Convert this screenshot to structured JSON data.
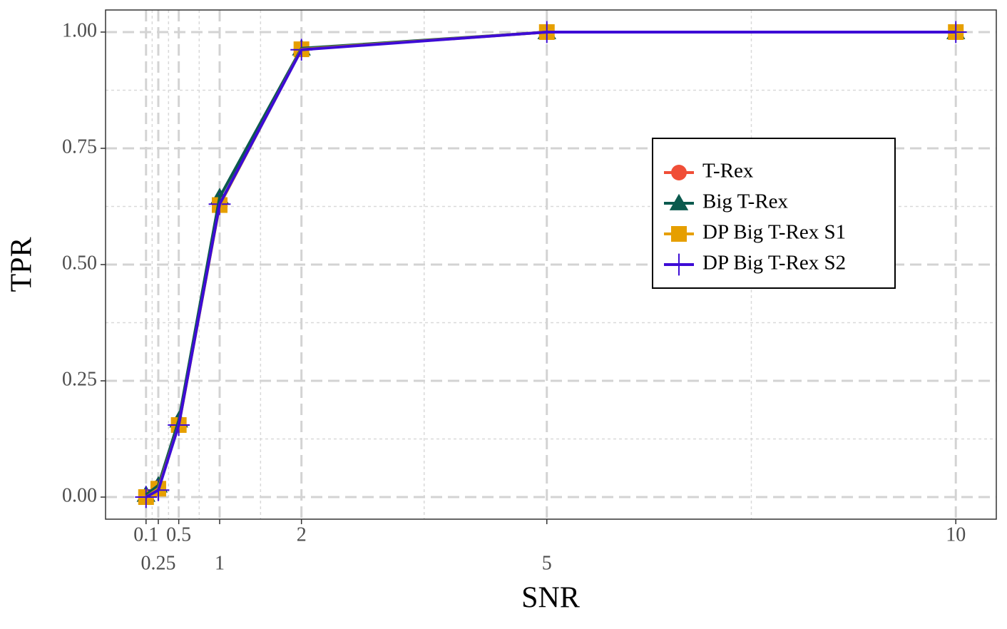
{
  "chart_data": {
    "type": "line",
    "x_label": "SNR",
    "y_label": "TPR",
    "x": [
      0.1,
      0.25,
      0.5,
      1,
      2,
      5,
      10
    ],
    "series": [
      {
        "name": "T-Rex",
        "color": "#f04e37",
        "marker": "circle",
        "values": [
          0,
          0.02,
          0.155,
          0.63,
          0.963,
          1,
          1
        ]
      },
      {
        "name": "Big T-Rex",
        "color": "#0b5a4e",
        "marker": "triangle",
        "values": [
          0.005,
          0.025,
          0.165,
          0.645,
          0.965,
          1,
          1
        ]
      },
      {
        "name": "DP Big T-Rex S1",
        "color": "#e69f00",
        "marker": "square",
        "values": [
          0,
          0.018,
          0.155,
          0.628,
          0.963,
          1,
          1
        ]
      },
      {
        "name": "DP Big T-Rex S2",
        "color": "#3d0cd6",
        "marker": "plus",
        "values": [
          0,
          0.015,
          0.155,
          0.63,
          0.962,
          1,
          1
        ]
      }
    ],
    "xlim": [
      -0.395,
      10.495
    ],
    "ylim": [
      -0.0475,
      1.0475
    ],
    "xticks": [
      0.1,
      0.25,
      0.5,
      1,
      2,
      5,
      10
    ],
    "yticks": [
      {
        "value": 0,
        "label": "0.00"
      },
      {
        "value": 0.25,
        "label": "0.25"
      },
      {
        "value": 0.5,
        "label": "0.50"
      },
      {
        "value": 0.75,
        "label": "0.75"
      },
      {
        "value": 1,
        "label": "1.00"
      }
    ],
    "grid": true,
    "legend_position": "inside-right"
  }
}
